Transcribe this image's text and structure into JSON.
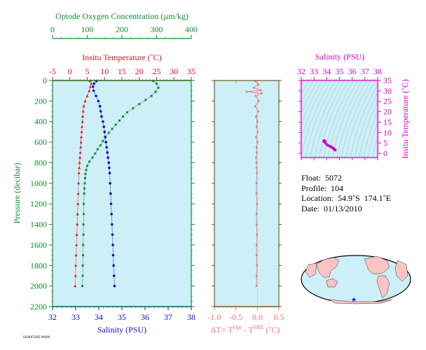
{
  "chart_data": [
    {
      "type": "line",
      "panel": "main-profile",
      "axes": {
        "oxygen": {
          "label": "Optode Oxygen Concentration (µm/kg)",
          "range": [
            0,
            400
          ],
          "ticks": [
            "0",
            "100",
            "200",
            "300",
            "400"
          ],
          "color": "#138a36"
        },
        "temperature": {
          "label": "Insitu Temperature (˚C)",
          "range": [
            -5,
            35
          ],
          "ticks": [
            "-5",
            "0",
            "5",
            "10",
            "15",
            "20",
            "25",
            "30",
            "35"
          ],
          "color": "#e0101a"
        },
        "salinity": {
          "label": "Salinity (PSU)",
          "range": [
            32,
            38
          ],
          "ticks": [
            "32",
            "33",
            "34",
            "35",
            "36",
            "37",
            "38"
          ],
          "color": "#1010c0"
        },
        "pressure": {
          "label": "Pressure (decibar)",
          "range": [
            0,
            2200
          ],
          "ticks": [
            "0",
            "200",
            "400",
            "600",
            "800",
            "1000",
            "1200",
            "1400",
            "1600",
            "1800",
            "2000",
            "2200"
          ],
          "color": "#138a36"
        }
      },
      "series": [
        {
          "key": "oxygen",
          "color": "#138a36",
          "marker": "square",
          "points": [
            [
              290,
              5
            ],
            [
              300,
              30
            ],
            [
              305,
              70
            ],
            [
              297,
              110
            ],
            [
              285,
              150
            ],
            [
              268,
              190
            ],
            [
              250,
              230
            ],
            [
              232,
              270
            ],
            [
              215,
              310
            ],
            [
              203,
              350
            ],
            [
              193,
              390
            ],
            [
              182,
              430
            ],
            [
              172,
              470
            ],
            [
              162,
              510
            ],
            [
              152,
              550
            ],
            [
              145,
              590
            ],
            [
              138,
              630
            ],
            [
              130,
              670
            ],
            [
              123,
              710
            ],
            [
              115,
              750
            ],
            [
              106,
              790
            ],
            [
              100,
              830
            ],
            [
              97,
              870
            ],
            [
              95,
              910
            ],
            [
              94,
              950
            ],
            [
              93,
              1000
            ],
            [
              92,
              1050
            ],
            [
              91,
              1100
            ],
            [
              90,
              1200
            ],
            [
              90,
              1300
            ],
            [
              89,
              1400
            ],
            [
              89,
              1500
            ],
            [
              88,
              1600
            ],
            [
              88,
              1700
            ],
            [
              87,
              1800
            ],
            [
              87,
              1900
            ],
            [
              86,
              2000
            ]
          ]
        },
        {
          "key": "temperature",
          "color": "#e0101a",
          "marker": "triangle",
          "points": [
            [
              5.8,
              5
            ],
            [
              6.2,
              30
            ],
            [
              5.9,
              60
            ],
            [
              5.6,
              100
            ],
            [
              5.0,
              150
            ],
            [
              4.4,
              200
            ],
            [
              4.0,
              250
            ],
            [
              3.8,
              300
            ],
            [
              3.7,
              350
            ],
            [
              3.6,
              400
            ],
            [
              3.5,
              450
            ],
            [
              3.4,
              500
            ],
            [
              3.3,
              550
            ],
            [
              3.2,
              600
            ],
            [
              3.1,
              650
            ],
            [
              3.0,
              700
            ],
            [
              2.9,
              750
            ],
            [
              2.8,
              800
            ],
            [
              2.7,
              850
            ],
            [
              2.6,
              900
            ],
            [
              2.5,
              1000
            ],
            [
              2.4,
              1100
            ],
            [
              2.3,
              1200
            ],
            [
              2.2,
              1300
            ],
            [
              2.1,
              1400
            ],
            [
              2.0,
              1500
            ],
            [
              1.9,
              1600
            ],
            [
              1.8,
              1700
            ],
            [
              1.7,
              1800
            ],
            [
              1.6,
              1900
            ],
            [
              1.5,
              2000
            ]
          ]
        },
        {
          "key": "salinity",
          "color": "#0d0dbf",
          "marker": "circle",
          "points": [
            [
              33.9,
              5
            ],
            [
              33.8,
              30
            ],
            [
              33.75,
              60
            ],
            [
              33.78,
              100
            ],
            [
              33.88,
              150
            ],
            [
              33.98,
              200
            ],
            [
              34.05,
              250
            ],
            [
              34.08,
              300
            ],
            [
              34.12,
              350
            ],
            [
              34.18,
              400
            ],
            [
              34.22,
              450
            ],
            [
              34.25,
              500
            ],
            [
              34.28,
              550
            ],
            [
              34.31,
              600
            ],
            [
              34.34,
              650
            ],
            [
              34.37,
              700
            ],
            [
              34.4,
              750
            ],
            [
              34.43,
              800
            ],
            [
              34.45,
              850
            ],
            [
              34.47,
              900
            ],
            [
              34.49,
              1000
            ],
            [
              34.51,
              1100
            ],
            [
              34.53,
              1200
            ],
            [
              34.55,
              1300
            ],
            [
              34.57,
              1400
            ],
            [
              34.59,
              1500
            ],
            [
              34.61,
              1600
            ],
            [
              34.62,
              1700
            ],
            [
              34.64,
              1800
            ],
            [
              34.66,
              1900
            ],
            [
              34.68,
              2000
            ]
          ]
        }
      ]
    },
    {
      "type": "line",
      "panel": "delta-t",
      "xlabel": "ΔT= T^Opt - T^SBE (˚C)",
      "xlabel_parts": {
        "lead": "ΔT= T",
        "sup1": "Opt",
        "mid": " - T",
        "sup2": "SBE",
        "tail": " (˚C)"
      },
      "xlim": [
        -1.0,
        0.5
      ],
      "ticks": [
        "-1.0",
        "-0.5",
        "0.0",
        "0.5"
      ],
      "ylim": [
        0,
        2200
      ],
      "color": "#f07070",
      "points": [
        [
          -0.05,
          5
        ],
        [
          0.02,
          40
        ],
        [
          -0.08,
          70
        ],
        [
          0.08,
          95
        ],
        [
          -0.25,
          110
        ],
        [
          0.1,
          125
        ],
        [
          -0.04,
          150
        ],
        [
          0.03,
          200
        ],
        [
          -0.05,
          250
        ],
        [
          0.02,
          300
        ],
        [
          -0.03,
          350
        ],
        [
          0.0,
          400
        ],
        [
          -0.02,
          450
        ],
        [
          0.01,
          500
        ],
        [
          -0.03,
          550
        ],
        [
          0.0,
          600
        ],
        [
          -0.02,
          650
        ],
        [
          -0.01,
          700
        ],
        [
          -0.03,
          750
        ],
        [
          -0.02,
          800
        ],
        [
          -0.02,
          850
        ],
        [
          -0.01,
          900
        ],
        [
          -0.02,
          1000
        ],
        [
          -0.02,
          1100
        ],
        [
          -0.01,
          1200
        ],
        [
          -0.02,
          1300
        ],
        [
          -0.02,
          1400
        ],
        [
          -0.01,
          1500
        ],
        [
          -0.02,
          1600
        ],
        [
          -0.02,
          1700
        ],
        [
          -0.01,
          1800
        ],
        [
          -0.02,
          1900
        ],
        [
          -0.02,
          2000
        ]
      ]
    },
    {
      "type": "scatter",
      "panel": "ts-diagram",
      "xlabel": "Salinity (PSU)",
      "ylabel": "Insitu Temperature (˚C)",
      "xlim": [
        32,
        38
      ],
      "ylim": [
        -2,
        35
      ],
      "xticks": [
        "32",
        "33",
        "34",
        "35",
        "36",
        "37",
        "38"
      ],
      "yticks": [
        "0",
        "5",
        "10",
        "15",
        "20",
        "25",
        "30",
        "35"
      ],
      "color": "#d000c8",
      "points": [
        [
          33.9,
          5.8
        ],
        [
          33.8,
          6.2
        ],
        [
          33.75,
          5.9
        ],
        [
          33.78,
          5.6
        ],
        [
          33.88,
          5.0
        ],
        [
          33.98,
          4.4
        ],
        [
          34.05,
          4.0
        ],
        [
          34.1,
          3.8
        ],
        [
          34.18,
          3.6
        ],
        [
          34.25,
          3.4
        ],
        [
          34.31,
          3.2
        ],
        [
          34.37,
          3.0
        ],
        [
          34.43,
          2.8
        ],
        [
          34.47,
          2.6
        ],
        [
          34.51,
          2.4
        ],
        [
          34.55,
          2.2
        ],
        [
          34.59,
          2.0
        ],
        [
          34.62,
          1.8
        ],
        [
          34.66,
          1.6
        ],
        [
          34.68,
          1.5
        ]
      ]
    }
  ],
  "float_info": {
    "float": "Float:  5072",
    "profile": "Profile:  104",
    "location": "Location:  54.9˚S  174.1˚E",
    "date": "Date:  01/13/2010"
  },
  "signature": "SIGNATURE MARK",
  "colors": {
    "plot_bg": "#cdeff7",
    "land": "#fbc4c4",
    "ocean": "#cdeff7",
    "marker": "#1010e0"
  }
}
